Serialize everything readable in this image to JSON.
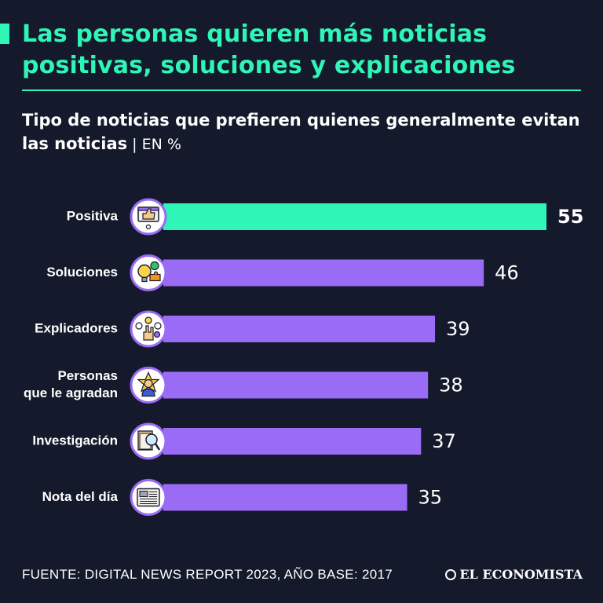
{
  "header": {
    "title": "Las personas quieren más noticias positivas, soluciones y explicaciones",
    "subtitle": "Tipo de noticias que prefieren quienes generalmente evitan las noticias",
    "unit": "| EN %"
  },
  "chart_data": {
    "type": "bar",
    "orientation": "horizontal",
    "title": "Tipo de noticias que prefieren quienes generalmente evitan las noticias",
    "unit": "EN %",
    "xlim": [
      0,
      55
    ],
    "categories": [
      {
        "label": [
          "Positiva"
        ],
        "value": 55,
        "icon": "thumbs-up-icon",
        "highlight": true
      },
      {
        "label": [
          "Soluciones"
        ],
        "value": 46,
        "icon": "lightbulb-puzzle-icon",
        "highlight": false
      },
      {
        "label": [
          "Explicadores"
        ],
        "value": 39,
        "icon": "question-hand-icon",
        "highlight": false
      },
      {
        "label": [
          "Personas",
          "que le agradan"
        ],
        "value": 38,
        "icon": "person-star-icon",
        "highlight": false
      },
      {
        "label": [
          "Investigación"
        ],
        "value": 37,
        "icon": "magnifier-document-icon",
        "highlight": false
      },
      {
        "label": [
          "Nota del día"
        ],
        "value": 35,
        "icon": "newspaper-icon",
        "highlight": false
      }
    ],
    "colors": {
      "highlight": "#2ff5b6",
      "normal": "#9a6cf5"
    }
  },
  "footer": {
    "source": "FUENTE: DIGITAL NEWS REPORT 2023, AÑO BASE: 2017",
    "logo": "EL ECONOMISTA"
  }
}
